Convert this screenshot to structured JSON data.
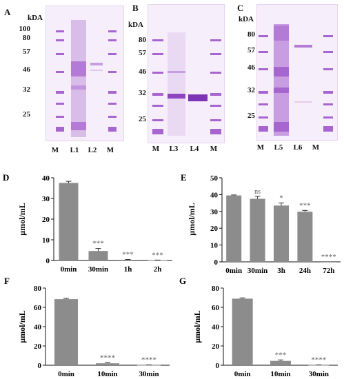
{
  "panels": {
    "A": {
      "letter": "A",
      "kda": "kDA",
      "markers": [
        "100",
        "80",
        "57",
        "46",
        "32",
        "25"
      ],
      "lanes": [
        "M",
        "L1",
        "L2",
        "M"
      ]
    },
    "B": {
      "letter": "B",
      "kda": "kDA",
      "markers": [
        "80",
        "57",
        "46",
        "32",
        "25"
      ],
      "lanes": [
        "M",
        "L3",
        "L4",
        "M"
      ]
    },
    "C": {
      "letter": "C",
      "kda": "kDA",
      "markers": [
        "80",
        "57",
        "46",
        "32",
        "25"
      ],
      "lanes": [
        "M",
        "L5",
        "L6",
        "M"
      ]
    }
  },
  "colors": {
    "bar": "#8c8c8c",
    "gel_bg": "#f6eefa",
    "band": "#9b52c8",
    "ladder": "#a765d0"
  },
  "chart_data": [
    {
      "panel": "D",
      "type": "bar",
      "ylabel": "μmol/mL",
      "categories": [
        "0min",
        "30min",
        "1h",
        "2h"
      ],
      "values": [
        37.5,
        4.6,
        0.3,
        0.1
      ],
      "errors": [
        0.8,
        1.2,
        0.2,
        0.1
      ],
      "significance": [
        "",
        "***",
        "***",
        "***"
      ],
      "ylim": [
        0,
        40
      ],
      "yticks": [
        "0",
        "10",
        "20",
        "30",
        "40"
      ]
    },
    {
      "panel": "E",
      "type": "bar",
      "ylabel": "μmol/mL",
      "categories": [
        "0min",
        "30min",
        "3h",
        "24h",
        "72h"
      ],
      "values": [
        39.5,
        37.5,
        33.5,
        29.8,
        0
      ],
      "errors": [
        0.3,
        1.5,
        1.5,
        0.8,
        0
      ],
      "significance": [
        "",
        "ns",
        "*",
        "***",
        "****"
      ],
      "ylim": [
        0,
        50
      ],
      "yticks": [
        "0",
        "10",
        "20",
        "30",
        "40",
        "50"
      ]
    },
    {
      "panel": "F",
      "type": "bar",
      "ylabel": "μmol/mL",
      "categories": [
        "0min",
        "10min",
        "30min"
      ],
      "values": [
        68.5,
        2.0,
        0.2
      ],
      "errors": [
        0.8,
        0.6,
        0.1
      ],
      "significance": [
        "",
        "****",
        "****"
      ],
      "ylim": [
        0,
        80
      ],
      "yticks": [
        "0",
        "20",
        "40",
        "60",
        "80"
      ]
    },
    {
      "panel": "G",
      "type": "bar",
      "ylabel": "μmol/mL",
      "categories": [
        "0min",
        "10min",
        "30min"
      ],
      "values": [
        69.0,
        4.5,
        0.2
      ],
      "errors": [
        0.8,
        1.0,
        0.1
      ],
      "significance": [
        "",
        "***",
        "****"
      ],
      "ylim": [
        0,
        80
      ],
      "yticks": [
        "0",
        "20",
        "40",
        "60",
        "80"
      ]
    }
  ]
}
